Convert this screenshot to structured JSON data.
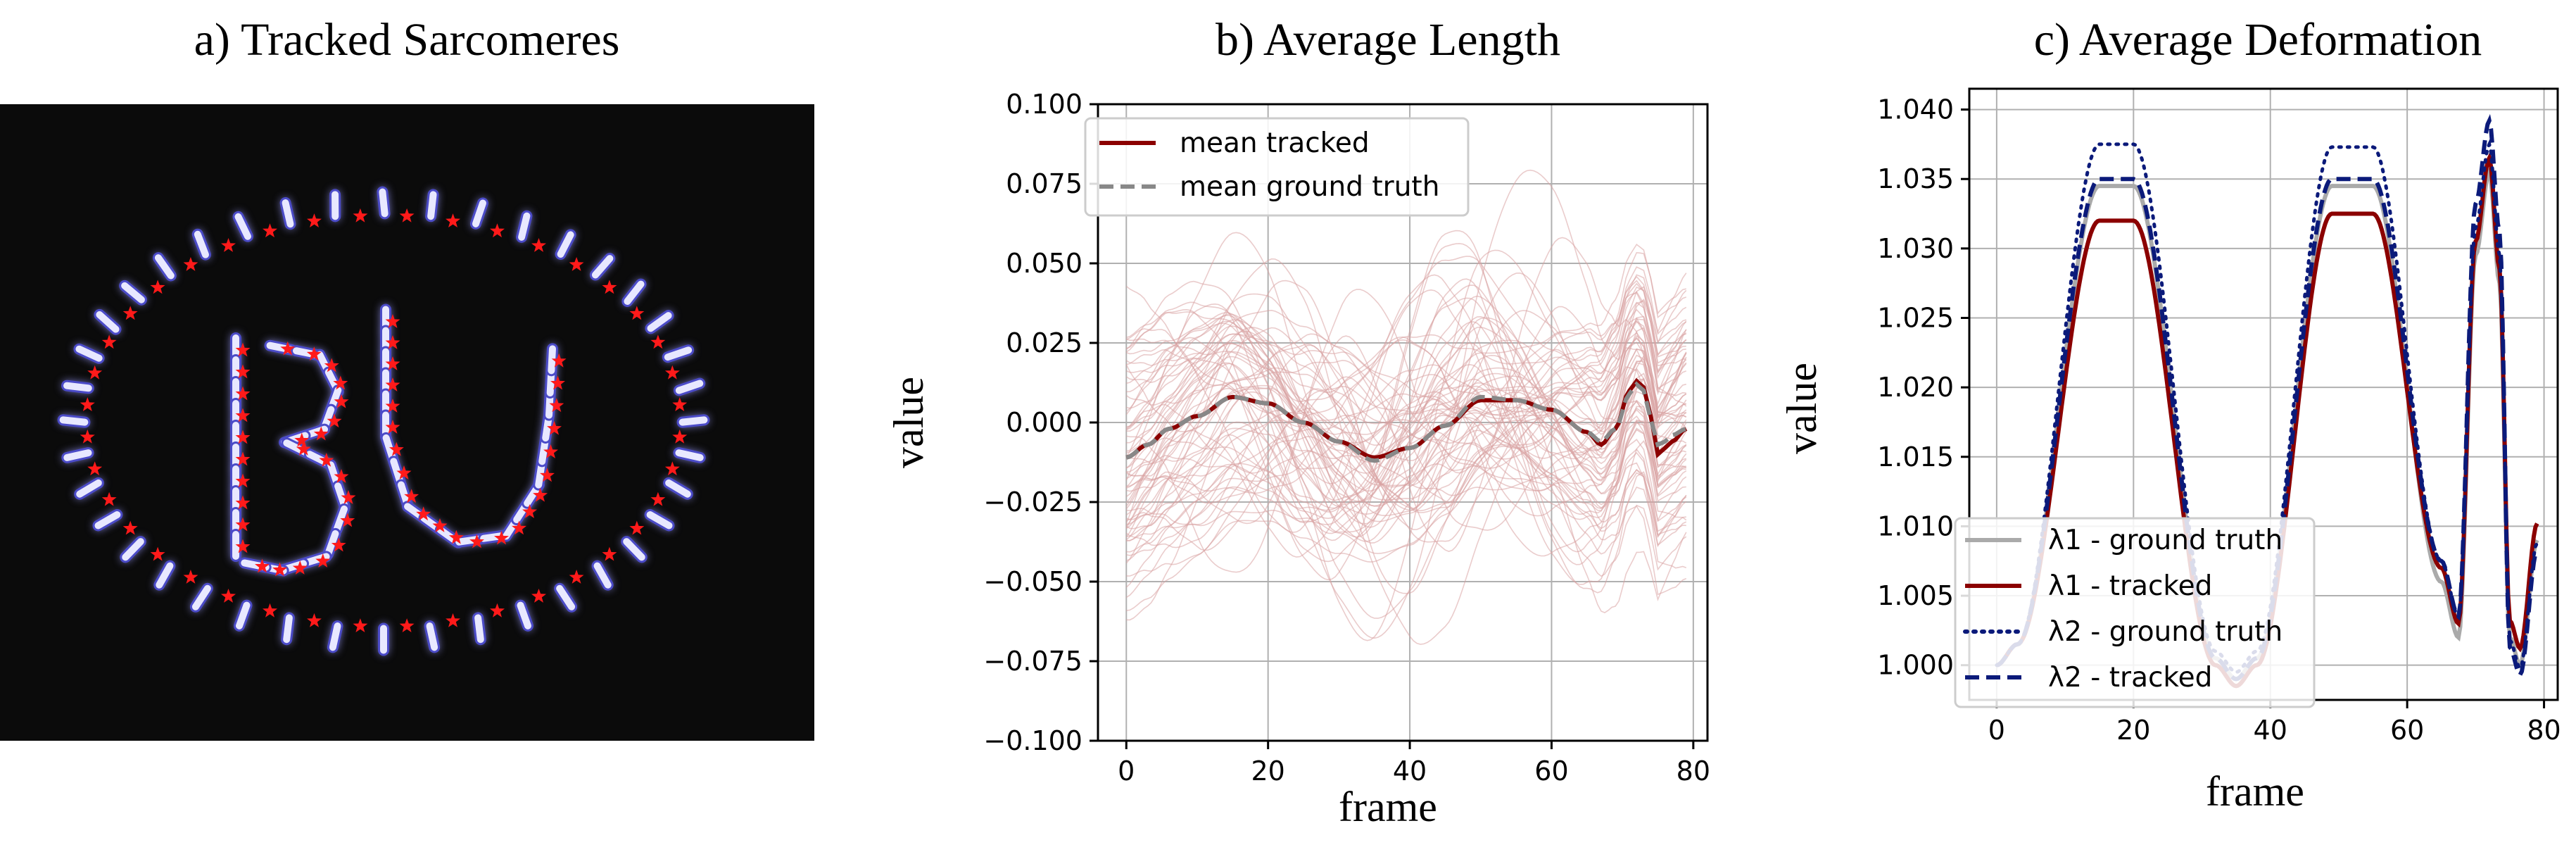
{
  "panels": {
    "a": {
      "title": "a) Tracked Sarcomeres",
      "word": "BU"
    },
    "b": {
      "title": "b) Average Length"
    },
    "c": {
      "title": "c) Average Deformation"
    }
  },
  "colors": {
    "tracked_red": "#8b0000",
    "gt_gray": "#888888",
    "bg_lines": "#d9a3a3",
    "navy": "#0b1a7a",
    "gt_lightgray": "#aaaaaa",
    "marker_red": "#ff1a1a",
    "sarcomere_fill": "#e8e8ff",
    "sarcomere_edge": "#4b4bc8"
  },
  "chart_data": [
    {
      "type": "image",
      "title": "a) Tracked Sarcomeres"
    },
    {
      "type": "line",
      "title": "b) Average Length",
      "xlabel": "frame",
      "ylabel": "value",
      "xlim": [
        -4,
        82
      ],
      "ylim": [
        -0.1,
        0.1
      ],
      "xticks": [
        0,
        20,
        40,
        60,
        80
      ],
      "xticklabels": [
        "0",
        "20",
        "40",
        "60",
        "80"
      ],
      "yticks": [
        -0.1,
        -0.075,
        -0.05,
        -0.025,
        0.0,
        0.025,
        0.05,
        0.075,
        0.1
      ],
      "yticklabels": [
        "−0.100",
        "−0.075",
        "−0.050",
        "−0.025",
        "0.000",
        "0.025",
        "0.050",
        "0.075",
        "0.100"
      ],
      "grid": true,
      "legend_position": "top-left",
      "legend": [
        "mean tracked",
        "mean ground truth"
      ],
      "x_keys": [
        0,
        3,
        6,
        10,
        15,
        20,
        25,
        30,
        35,
        40,
        45,
        50,
        55,
        60,
        65,
        67,
        69,
        71,
        72,
        73,
        74,
        75,
        76,
        77,
        79
      ],
      "series": [
        {
          "name": "mean tracked",
          "style": "solid",
          "values": [
            -0.011,
            -0.007,
            -0.002,
            0.002,
            0.008,
            0.006,
            0.0,
            -0.006,
            -0.011,
            -0.008,
            -0.001,
            0.007,
            0.007,
            0.004,
            -0.003,
            -0.007,
            -0.002,
            0.01,
            0.013,
            0.011,
            0.002,
            -0.01,
            -0.008,
            -0.006,
            -0.002
          ]
        },
        {
          "name": "mean ground truth",
          "style": "dashed",
          "values": [
            -0.011,
            -0.007,
            -0.002,
            0.002,
            0.008,
            0.006,
            0.0,
            -0.006,
            -0.012,
            -0.008,
            -0.001,
            0.008,
            0.007,
            0.004,
            -0.003,
            -0.006,
            -0.002,
            0.009,
            0.012,
            0.01,
            0.001,
            -0.007,
            -0.006,
            -0.004,
            -0.002
          ]
        }
      ]
    },
    {
      "type": "line",
      "title": "c) Average Deformation",
      "xlabel": "frame",
      "ylabel": "value",
      "xlim": [
        -4,
        82
      ],
      "ylim": [
        0.9975,
        1.0415
      ],
      "xticks": [
        0,
        20,
        40,
        60,
        80
      ],
      "xticklabels": [
        "0",
        "20",
        "40",
        "60",
        "80"
      ],
      "yticks": [
        1.0,
        1.005,
        1.01,
        1.015,
        1.02,
        1.025,
        1.03,
        1.035,
        1.04
      ],
      "yticklabels": [
        "1.000",
        "1.005",
        "1.010",
        "1.015",
        "1.020",
        "1.025",
        "1.030",
        "1.035",
        "1.040"
      ],
      "grid": true,
      "legend_position": "bottom-left",
      "legend": [
        "λ1 - ground truth",
        "λ1 - tracked",
        "λ2 - ground truth",
        "λ2 - tracked"
      ],
      "series": [
        {
          "name": "λ1 - ground truth",
          "style": "solid-gray",
          "peaks": [
            1.0345,
            1.0345,
            1.0355
          ],
          "lows": [
            1.0,
            0.999,
            1.002,
            1.0
          ]
        },
        {
          "name": "λ1 - tracked",
          "style": "solid-red",
          "peaks": [
            1.032,
            1.0325,
            1.0365
          ],
          "lows": [
            1.0,
            0.9985,
            1.003,
            1.0012
          ]
        },
        {
          "name": "λ2 - ground truth",
          "style": "dotted-navy",
          "peaks": [
            1.0375,
            1.0373,
            1.0375
          ],
          "lows": [
            1.0,
            0.9995,
            1.0035,
            0.9998
          ]
        },
        {
          "name": "λ2 - tracked",
          "style": "dashed-navy",
          "peaks": [
            1.035,
            1.035,
            1.0392
          ],
          "lows": [
            1.0,
            0.999,
            1.0035,
            0.9993
          ]
        }
      ]
    }
  ]
}
